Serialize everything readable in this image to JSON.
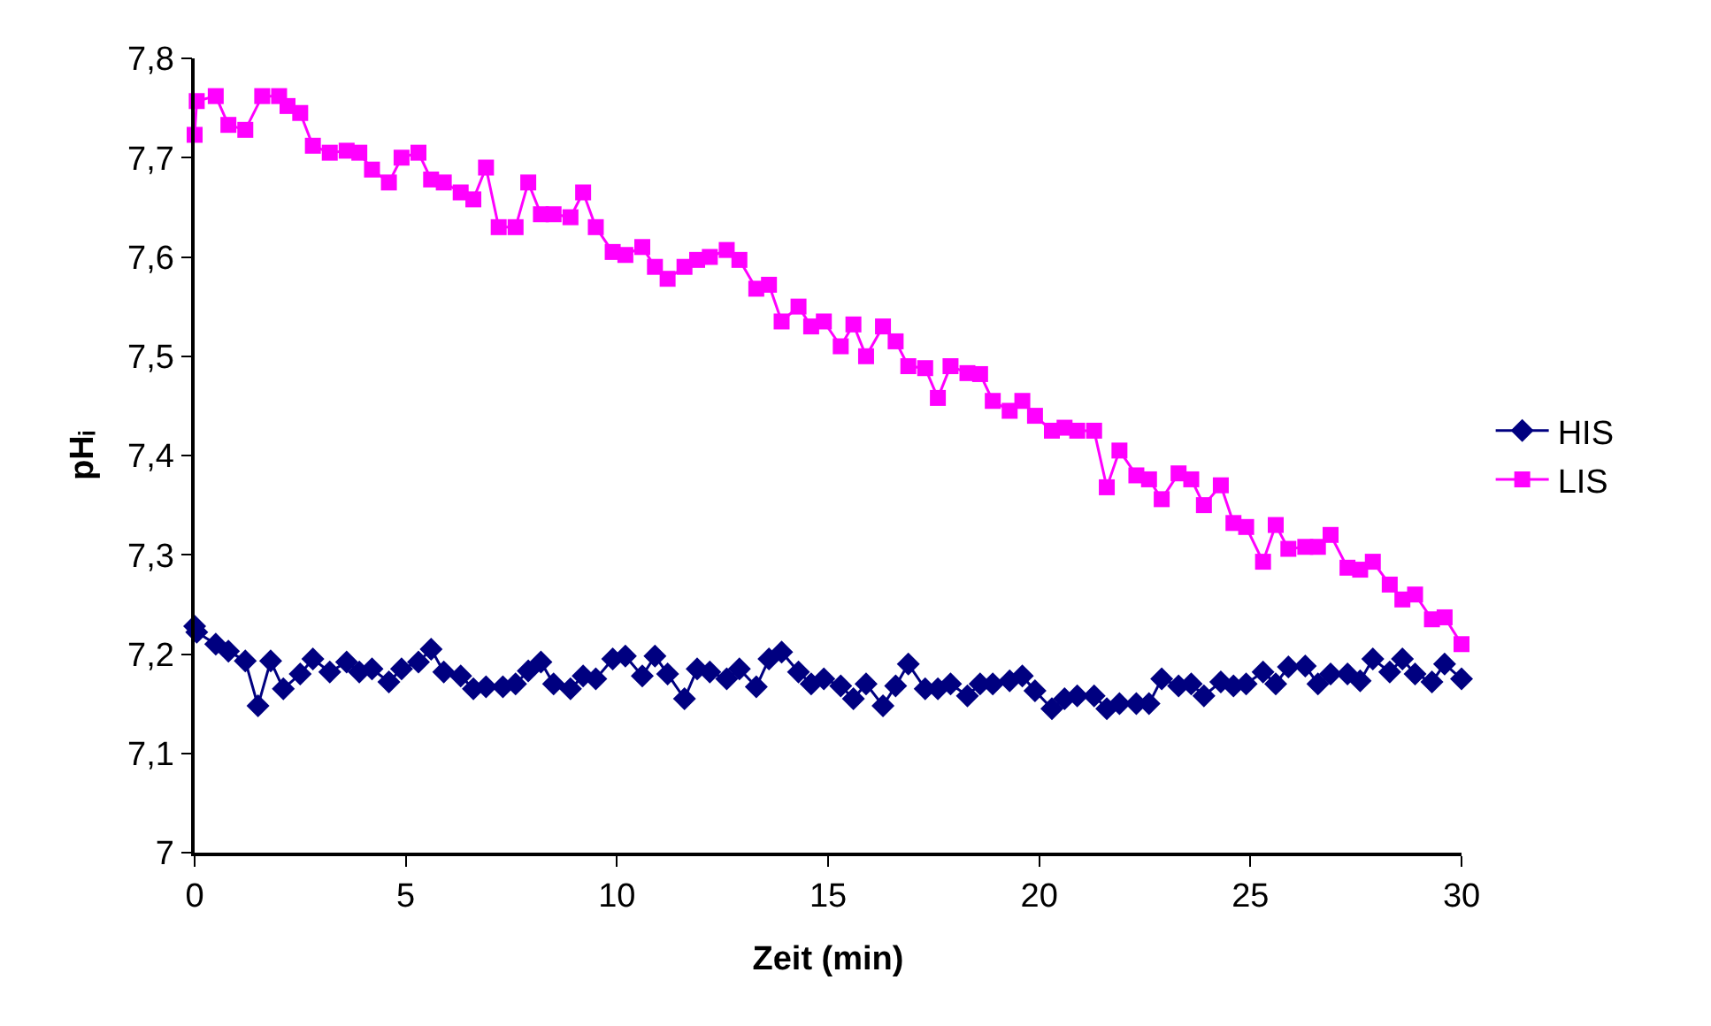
{
  "chart_data": {
    "type": "line",
    "xlabel": "Zeit (min)",
    "ylabel": "pHᵢ",
    "xlim": [
      0,
      30
    ],
    "xticks": [
      0,
      5,
      10,
      15,
      20,
      25,
      30
    ],
    "ylim": [
      7,
      7.8
    ],
    "yticks": [
      {
        "value": 7,
        "label": "7"
      },
      {
        "value": 7.1,
        "label": "7,1"
      },
      {
        "value": 7.2,
        "label": "7,2"
      },
      {
        "value": 7.3,
        "label": "7,3"
      },
      {
        "value": 7.4,
        "label": "7,4"
      },
      {
        "value": 7.5,
        "label": "7,5"
      },
      {
        "value": 7.6,
        "label": "7,6"
      },
      {
        "value": 7.7,
        "label": "7,7"
      },
      {
        "value": 7.8,
        "label": "7,8"
      }
    ],
    "grid": false,
    "legend": "right",
    "line_style": "solid",
    "series": [
      {
        "name": "HIS",
        "color": "#000080",
        "marker": "diamond",
        "x": [
          0,
          0.05,
          0.5,
          0.8,
          1.2,
          1.5,
          1.8,
          2.1,
          2.5,
          2.8,
          3.2,
          3.6,
          3.9,
          4.2,
          4.6,
          4.9,
          5.3,
          5.6,
          5.9,
          6.3,
          6.6,
          6.9,
          7.3,
          7.6,
          7.9,
          8.2,
          8.5,
          8.9,
          9.2,
          9.5,
          9.9,
          10.2,
          10.6,
          10.9,
          11.2,
          11.6,
          11.9,
          12.2,
          12.6,
          12.9,
          13.3,
          13.6,
          13.9,
          14.3,
          14.6,
          14.9,
          15.3,
          15.6,
          15.9,
          16.3,
          16.6,
          16.9,
          17.3,
          17.6,
          17.9,
          18.3,
          18.6,
          18.9,
          19.3,
          19.6,
          19.9,
          20.3,
          20.6,
          20.9,
          21.3,
          21.6,
          21.9,
          22.3,
          22.6,
          22.9,
          23.3,
          23.6,
          23.9,
          24.3,
          24.6,
          24.9,
          25.3,
          25.6,
          25.9,
          26.3,
          26.6,
          26.9,
          27.3,
          27.6,
          27.9,
          28.3,
          28.6,
          28.9,
          29.3,
          29.6,
          30
        ],
        "values": [
          7.228,
          7.222,
          7.21,
          7.203,
          7.193,
          7.148,
          7.193,
          7.165,
          7.18,
          7.195,
          7.182,
          7.192,
          7.182,
          7.185,
          7.172,
          7.185,
          7.192,
          7.205,
          7.182,
          7.178,
          7.165,
          7.167,
          7.167,
          7.17,
          7.183,
          7.192,
          7.17,
          7.165,
          7.178,
          7.175,
          7.195,
          7.198,
          7.178,
          7.198,
          7.18,
          7.155,
          7.185,
          7.182,
          7.175,
          7.185,
          7.167,
          7.195,
          7.202,
          7.182,
          7.17,
          7.175,
          7.168,
          7.155,
          7.17,
          7.148,
          7.168,
          7.19,
          7.165,
          7.165,
          7.17,
          7.158,
          7.17,
          7.17,
          7.173,
          7.178,
          7.163,
          7.145,
          7.155,
          7.158,
          7.158,
          7.145,
          7.15,
          7.15,
          7.15,
          7.175,
          7.168,
          7.17,
          7.158,
          7.172,
          7.168,
          7.17,
          7.182,
          7.17,
          7.187,
          7.188,
          7.17,
          7.18,
          7.18,
          7.173,
          7.195,
          7.182,
          7.195,
          7.18,
          7.172,
          7.19,
          7.175
        ]
      },
      {
        "name": "LIS",
        "color": "#ff00ff",
        "marker": "square",
        "x": [
          0,
          0.05,
          0.5,
          0.8,
          1.2,
          1.6,
          2.0,
          2.2,
          2.5,
          2.8,
          3.2,
          3.6,
          3.9,
          4.2,
          4.6,
          4.9,
          5.3,
          5.6,
          5.9,
          6.3,
          6.6,
          6.9,
          7.2,
          7.6,
          7.9,
          8.2,
          8.5,
          8.9,
          9.2,
          9.5,
          9.9,
          10.2,
          10.6,
          10.9,
          11.2,
          11.6,
          11.9,
          12.2,
          12.6,
          12.9,
          13.3,
          13.6,
          13.9,
          14.3,
          14.6,
          14.9,
          15.3,
          15.6,
          15.9,
          16.3,
          16.6,
          16.9,
          17.3,
          17.6,
          17.9,
          18.3,
          18.6,
          18.9,
          19.3,
          19.6,
          19.9,
          20.3,
          20.6,
          20.9,
          21.3,
          21.6,
          21.9,
          22.3,
          22.6,
          22.9,
          23.3,
          23.6,
          23.9,
          24.3,
          24.6,
          24.9,
          25.3,
          25.6,
          25.9,
          26.3,
          26.6,
          26.9,
          27.3,
          27.6,
          27.9,
          28.3,
          28.6,
          28.9,
          29.3,
          29.6,
          30
        ],
        "values": [
          7.723,
          7.757,
          7.762,
          7.733,
          7.728,
          7.762,
          7.762,
          7.752,
          7.745,
          7.712,
          7.705,
          7.707,
          7.705,
          7.688,
          7.675,
          7.7,
          7.705,
          7.678,
          7.675,
          7.665,
          7.658,
          7.69,
          7.63,
          7.63,
          7.675,
          7.643,
          7.643,
          7.64,
          7.665,
          7.63,
          7.605,
          7.602,
          7.61,
          7.59,
          7.578,
          7.59,
          7.597,
          7.6,
          7.607,
          7.597,
          7.568,
          7.572,
          7.535,
          7.55,
          7.53,
          7.535,
          7.51,
          7.532,
          7.5,
          7.53,
          7.515,
          7.49,
          7.488,
          7.458,
          7.49,
          7.483,
          7.482,
          7.455,
          7.445,
          7.455,
          7.44,
          7.425,
          7.428,
          7.425,
          7.425,
          7.368,
          7.405,
          7.38,
          7.376,
          7.356,
          7.382,
          7.376,
          7.35,
          7.37,
          7.332,
          7.328,
          7.293,
          7.33,
          7.306,
          7.308,
          7.308,
          7.32,
          7.287,
          7.285,
          7.293,
          7.27,
          7.255,
          7.26,
          7.235,
          7.237,
          7.21
        ]
      }
    ]
  }
}
